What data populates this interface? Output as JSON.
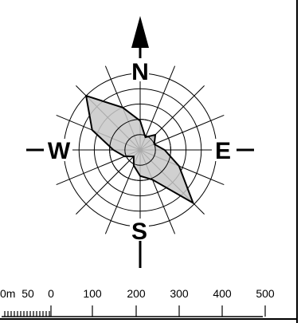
{
  "rose": {
    "directions": {
      "north": "N",
      "east": "E",
      "south": "S",
      "west": "W"
    },
    "fill_color": "#c8c8c8",
    "stroke_color": "#000000",
    "ring_count": 5,
    "spoke_count": 16,
    "polygon_radii": [
      0.38,
      0.18,
      0.28,
      0.2,
      0.32,
      0.55,
      0.98,
      0.42,
      0.34,
      0.22,
      0.12,
      0.22,
      0.35,
      0.68,
      1.0,
      0.6
    ]
  },
  "scale_bar": {
    "labels": [
      "0m",
      "50",
      "0",
      "100",
      "200",
      "300",
      "400",
      "500"
    ],
    "segments": [
      0,
      100,
      200,
      300,
      400,
      500
    ]
  }
}
